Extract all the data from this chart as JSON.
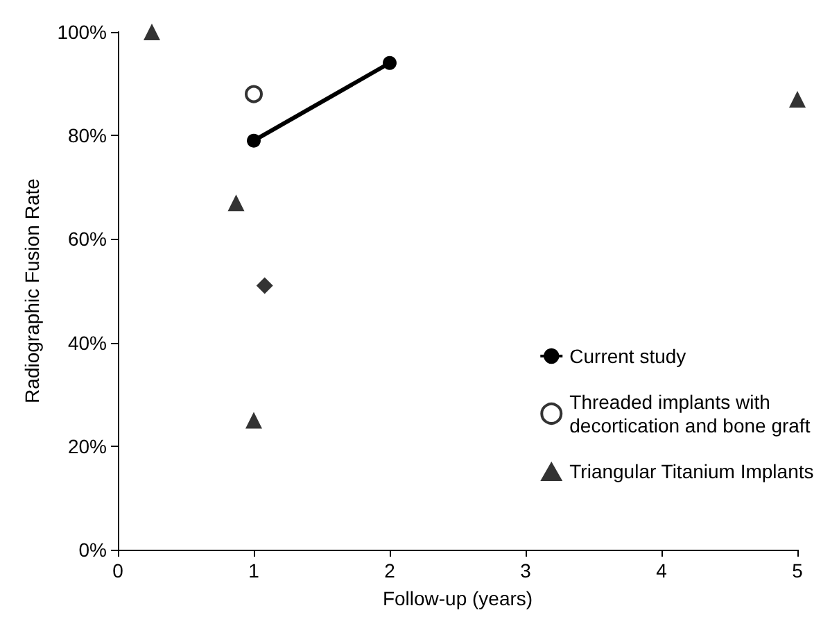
{
  "chart_data": {
    "type": "scatter",
    "xlabel": "Follow-up (years)",
    "ylabel": "Radiographic Fusion Rate",
    "series": [
      {
        "name": "Current study",
        "type": "line",
        "marker": "circle",
        "color": "#000000",
        "x": [
          1,
          2
        ],
        "values": [
          79,
          94
        ]
      },
      {
        "name": "Threaded implants with\ndecortication and bone graft",
        "marker": "circle",
        "color": "#000000",
        "x": [
          1
        ],
        "values": [
          88
        ]
      },
      {
        "name": "Triangular Titanium Implants",
        "marker": "triangle",
        "color": "#000000",
        "x": [
          0.25,
          0.87,
          1,
          5
        ],
        "values": [
          100,
          67,
          25,
          87
        ]
      },
      {
        "marker": "diamond",
        "color": "#000000",
        "x": [
          1.08
        ],
        "values": [
          51
        ]
      }
    ],
    "xlim": [
      0,
      5
    ],
    "xticks": [
      0,
      1,
      2,
      3,
      4,
      5
    ],
    "ylim": [
      0,
      100
    ],
    "yticks": [
      {
        "value": 0,
        "label": "0%"
      },
      {
        "value": 20,
        "label": "20%"
      },
      {
        "value": 40,
        "label": "40%"
      },
      {
        "value": 60,
        "label": "60%"
      },
      {
        "value": 80,
        "label": "80%"
      },
      {
        "value": 100,
        "label": "100%"
      }
    ],
    "grid": false,
    "legend": "bottom right"
  }
}
